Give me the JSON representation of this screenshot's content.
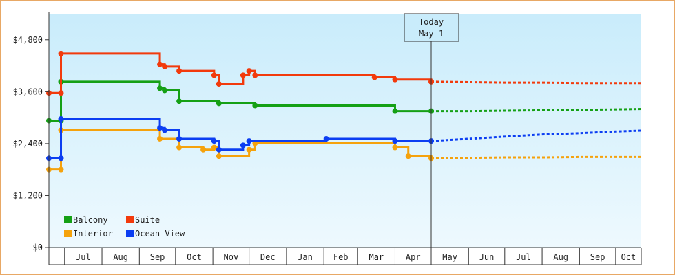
{
  "chart_data": {
    "type": "line",
    "title": "",
    "xlabel": "",
    "ylabel": "",
    "ylim": [
      0,
      5400
    ],
    "y_ticks": [
      0,
      1200,
      2400,
      3600,
      4800
    ],
    "y_tick_labels": [
      "$0",
      "$1,200",
      "$2,400",
      "$3,600",
      "$4,800"
    ],
    "x_ticks": [
      "Jul",
      "Aug",
      "Sep",
      "Oct",
      "Nov",
      "Dec",
      "Jan",
      "Feb",
      "Mar",
      "Apr",
      "May",
      "Jun",
      "Jul",
      "Aug",
      "Sep",
      "Oct"
    ],
    "grid": false,
    "legend_position": "bottom-left",
    "today": {
      "line1": "Today",
      "line2": "May 1"
    },
    "background_gradient": [
      "#c9ecfb",
      "#eef9fe"
    ],
    "series": [
      {
        "name": "Balcony",
        "color": "#15a015",
        "dates": [
          "2024-06-18",
          "2024-06-28",
          "2024-06-28",
          "2024-09-17",
          "2024-09-18",
          "2024-09-22",
          "2024-09-30",
          "2024-10-04",
          "2024-10-24",
          "2024-11-02",
          "2024-11-06",
          "2024-11-26",
          "2024-11-26",
          "2024-12-01",
          "2024-12-06",
          "2025-02-03",
          "2025-03-15",
          "2025-04-01",
          "2025-05-01"
        ],
        "values": [
          2930,
          2930,
          3830,
          3830,
          3680,
          3630,
          3630,
          3380,
          3380,
          3380,
          3330,
          3330,
          3330,
          3330,
          3280,
          3280,
          3280,
          3150,
          3150
        ],
        "forecast_dates": [
          "2025-05-01",
          "2025-06-01",
          "2025-07-01",
          "2025-08-01",
          "2025-09-01",
          "2025-10-01",
          "2025-10-31"
        ],
        "forecast_values": [
          3150,
          3150,
          3160,
          3170,
          3180,
          3190,
          3200
        ]
      },
      {
        "name": "Suite",
        "color": "#f23a0c",
        "dates": [
          "2024-06-18",
          "2024-06-28",
          "2024-06-28",
          "2024-09-17",
          "2024-09-18",
          "2024-09-22",
          "2024-09-30",
          "2024-10-04",
          "2024-10-24",
          "2024-11-02",
          "2024-11-06",
          "2024-11-26",
          "2024-11-26",
          "2024-12-01",
          "2024-12-06",
          "2025-02-03",
          "2025-03-15",
          "2025-04-01",
          "2025-05-01"
        ],
        "values": [
          3570,
          3570,
          4480,
          4480,
          4230,
          4180,
          4180,
          4080,
          4080,
          3980,
          3780,
          3780,
          3980,
          4080,
          3980,
          3980,
          3930,
          3880,
          3830
        ],
        "forecast_dates": [
          "2025-05-01",
          "2025-06-01",
          "2025-07-01",
          "2025-08-01",
          "2025-09-01",
          "2025-10-01",
          "2025-10-31"
        ],
        "forecast_values": [
          3830,
          3820,
          3810,
          3810,
          3800,
          3800,
          3800
        ]
      },
      {
        "name": "Interior",
        "color": "#f5a20c",
        "dates": [
          "2024-06-18",
          "2024-06-28",
          "2024-06-28",
          "2024-09-17",
          "2024-09-18",
          "2024-09-30",
          "2024-10-04",
          "2024-10-24",
          "2024-11-02",
          "2024-11-06",
          "2024-11-26",
          "2024-12-01",
          "2024-12-06",
          "2025-02-03",
          "2025-03-15",
          "2025-04-01",
          "2025-04-12",
          "2025-05-01"
        ],
        "values": [
          1800,
          1800,
          2710,
          2710,
          2510,
          2510,
          2310,
          2260,
          2310,
          2110,
          2110,
          2260,
          2410,
          2410,
          2410,
          2310,
          2110,
          2060
        ],
        "forecast_dates": [
          "2025-05-01",
          "2025-06-01",
          "2025-07-01",
          "2025-08-01",
          "2025-09-01",
          "2025-10-01",
          "2025-10-31"
        ],
        "forecast_values": [
          2060,
          2070,
          2080,
          2080,
          2090,
          2090,
          2090
        ]
      },
      {
        "name": "Ocean View",
        "color": "#0c3ef2",
        "dates": [
          "2024-06-18",
          "2024-06-28",
          "2024-06-28",
          "2024-09-17",
          "2024-09-18",
          "2024-09-22",
          "2024-09-26",
          "2024-09-30",
          "2024-10-04",
          "2024-10-24",
          "2024-11-02",
          "2024-11-06",
          "2024-11-26",
          "2024-12-01",
          "2024-12-06",
          "2025-02-03",
          "2025-03-15",
          "2025-04-01",
          "2025-05-01"
        ],
        "values": [
          2060,
          2060,
          2970,
          2970,
          2760,
          2710,
          2710,
          2710,
          2510,
          2510,
          2460,
          2260,
          2360,
          2460,
          2460,
          2510,
          2510,
          2460,
          2460
        ],
        "forecast_dates": [
          "2025-05-01",
          "2025-06-01",
          "2025-07-01",
          "2025-08-01",
          "2025-09-01",
          "2025-10-01",
          "2025-10-31"
        ],
        "forecast_values": [
          2460,
          2510,
          2560,
          2610,
          2640,
          2680,
          2700
        ]
      }
    ]
  }
}
